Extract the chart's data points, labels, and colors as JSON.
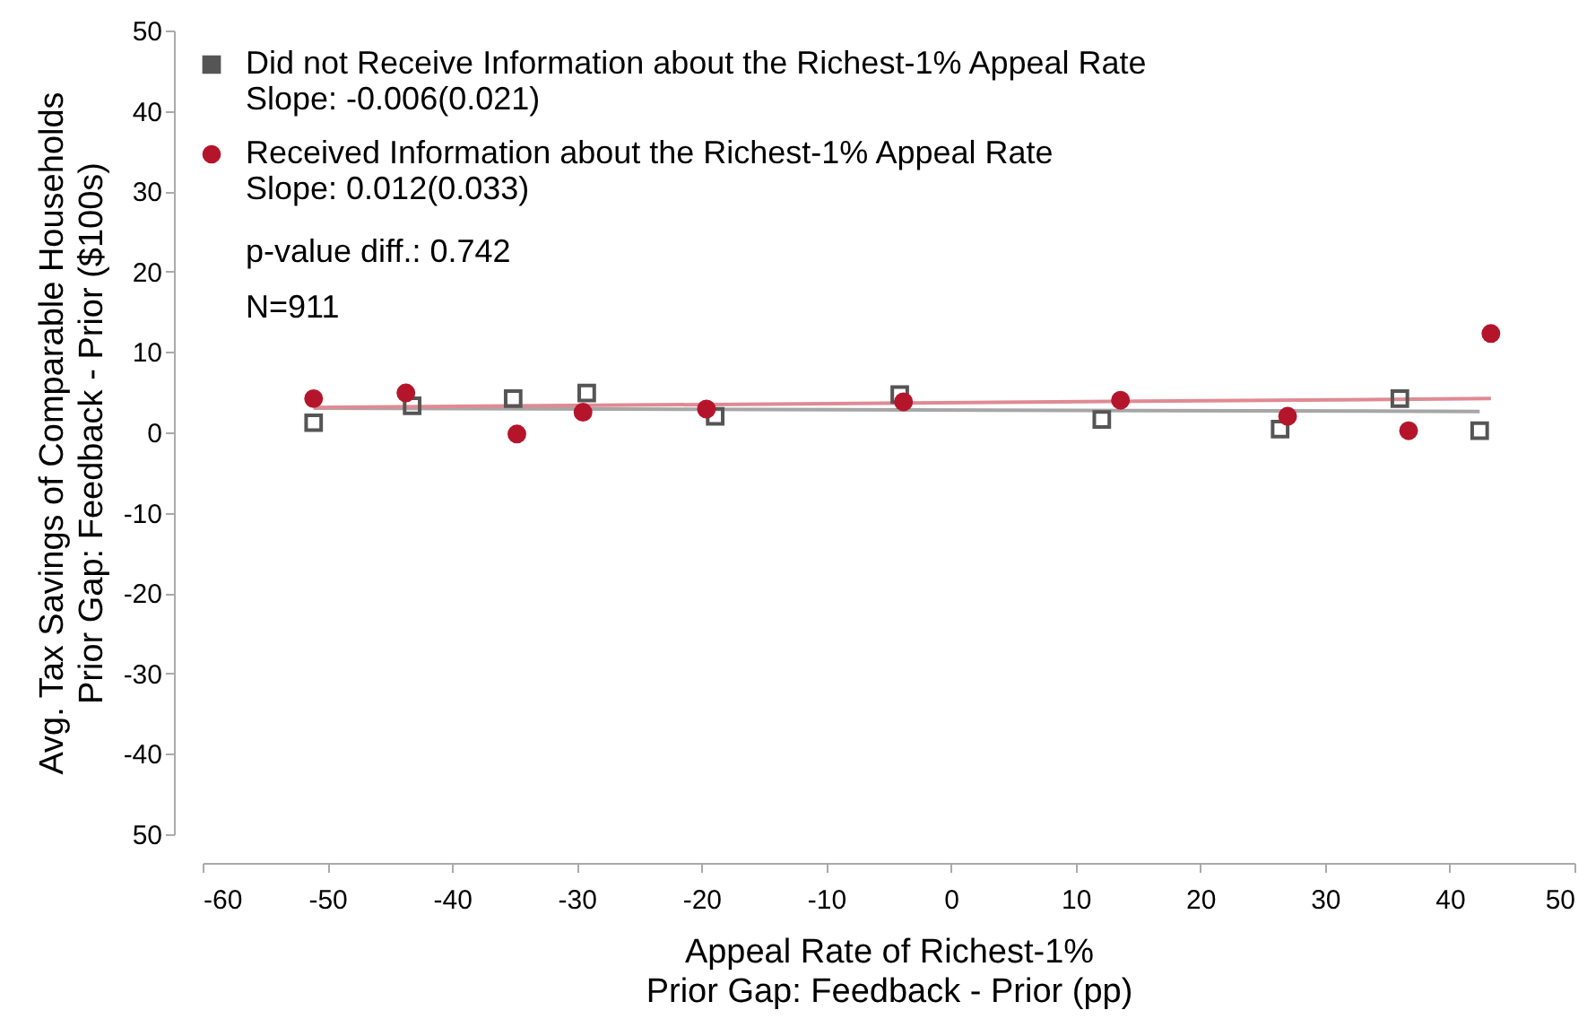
{
  "chart_data": {
    "type": "scatter",
    "xlabel": "Appeal Rate of Richest-1%\nPrior Gap: Feedback - Prior (pp)",
    "ylabel": "Avg. Tax Savings of Comparable Households\nPrior Gap: Feedback - Prior ($100s)",
    "xlim": [
      -60,
      50
    ],
    "xticks": [
      -60,
      -50,
      -40,
      -30,
      -20,
      -10,
      0,
      10,
      20,
      30,
      40,
      50
    ],
    "ylim": [
      -50,
      50
    ],
    "yticks": [
      {
        "value": -50,
        "label": "50"
      },
      -40,
      -30,
      -20,
      -10,
      0,
      10,
      20,
      30,
      40,
      50
    ],
    "grid": false,
    "legend": "top left",
    "series": [
      {
        "name": "Did not Receive Information about the Richest-1% Appeal Rate",
        "color": "#555555",
        "marker": "square",
        "x": [
          -51.1,
          -43.2,
          -35.1,
          -29.2,
          -18.9,
          -4.1,
          12.1,
          26.4,
          36.0,
          42.4
        ],
        "values": [
          1.2,
          3.3,
          4.2,
          4.9,
          2.0,
          4.7,
          1.6,
          0.4,
          4.2,
          0.2
        ]
      },
      {
        "name": "Received Information about the Richest-1% Appeal Rate",
        "color": "#b5152b",
        "marker": "circle",
        "x": [
          -51.1,
          -43.7,
          -34.8,
          -29.5,
          -19.6,
          -3.8,
          13.6,
          27.0,
          36.7,
          43.3
        ],
        "values": [
          4.2,
          4.9,
          -0.2,
          2.5,
          2.9,
          3.8,
          4.0,
          2.0,
          0.2,
          12.3
        ]
      },
      {
        "type": "line",
        "color": "#a6a6a6",
        "x": [
          -51.1,
          42.4
        ],
        "values": [
          3.0,
          2.6
        ]
      },
      {
        "type": "line",
        "color": "#e08a94",
        "x": [
          -51.1,
          43.3
        ],
        "values": [
          3.1,
          4.2
        ]
      }
    ],
    "annotations": [
      "Slope: -0.006(0.021)",
      "Slope: 0.012(0.033)",
      "p-value diff.: 0.742",
      "N=911"
    ]
  }
}
